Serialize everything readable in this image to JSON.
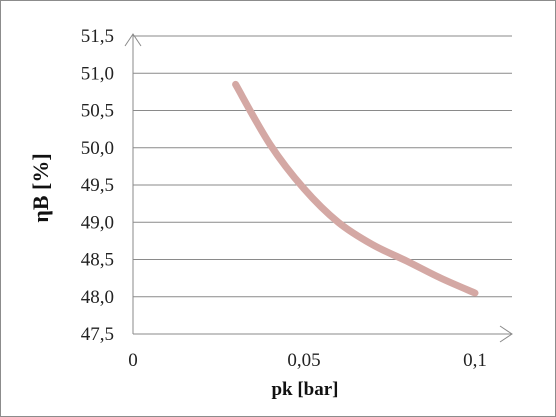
{
  "chart_data": {
    "type": "line",
    "title": "",
    "xlabel": "pk [bar]",
    "ylabel": "ηB [%]",
    "xlim": [
      0,
      0.1
    ],
    "ylim": [
      47.5,
      51.5
    ],
    "x_ticks": [
      "0",
      "0,05",
      "0,1"
    ],
    "y_ticks": [
      "47,5",
      "48,0",
      "48,5",
      "49,0",
      "49,5",
      "50,0",
      "50,5",
      "51,0",
      "51,5"
    ],
    "grid": "horizontal",
    "legend": "none",
    "series": [
      {
        "color": "#d4a8a4",
        "x": [
          0.03,
          0.04,
          0.05,
          0.06,
          0.07,
          0.08,
          0.09,
          0.1
        ],
        "y": [
          50.85,
          50.05,
          49.45,
          49.0,
          48.7,
          48.48,
          48.25,
          48.05
        ]
      }
    ]
  }
}
